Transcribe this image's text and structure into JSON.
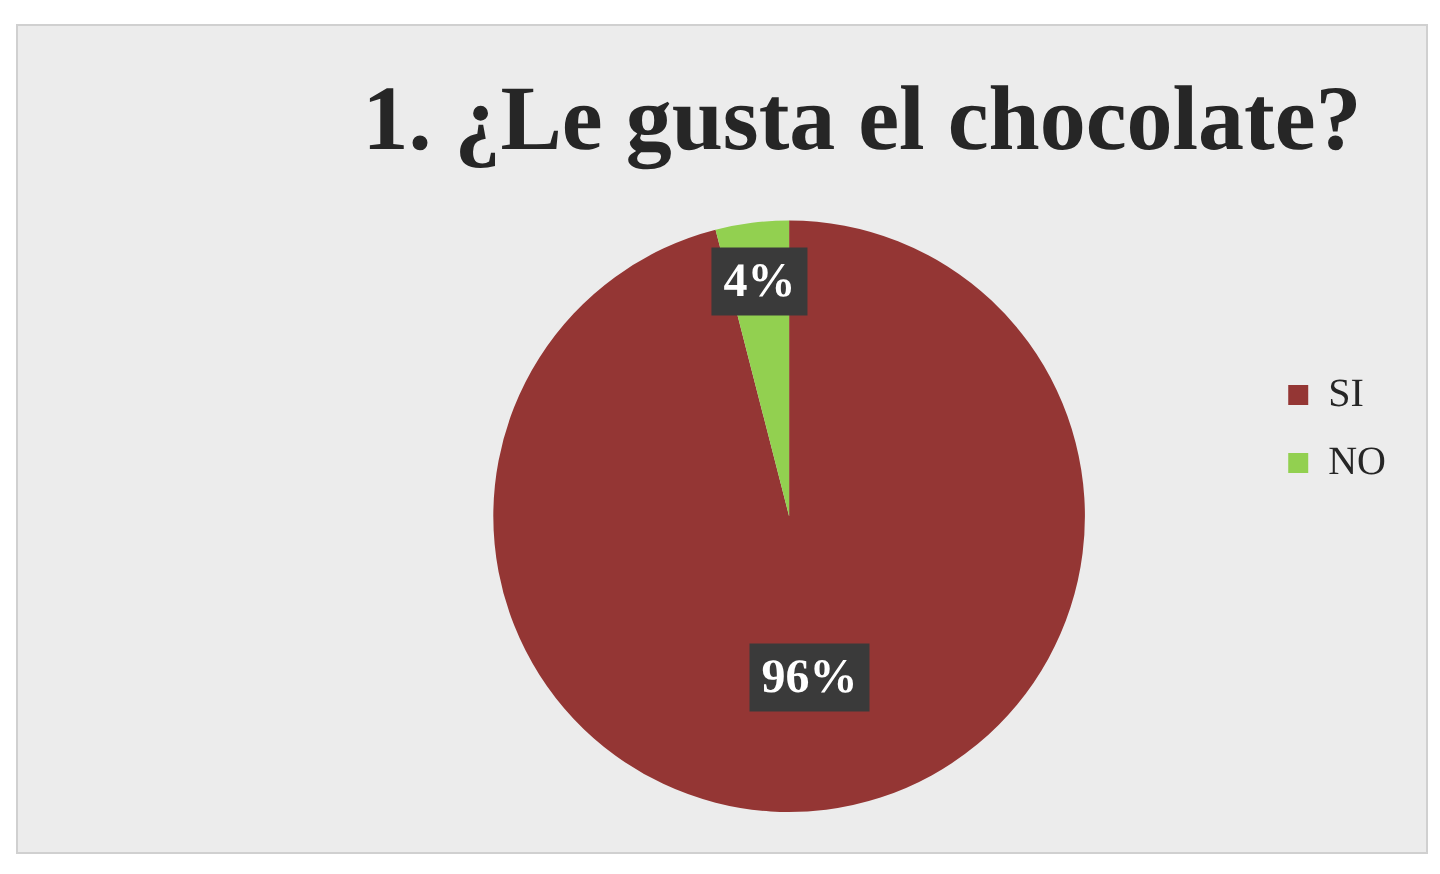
{
  "chart_data": {
    "type": "pie",
    "title": "1. ¿Le gusta el chocolate?",
    "categories": [
      "SI",
      "NO"
    ],
    "values": [
      96,
      4
    ],
    "colors": [
      "#943634",
      "#92d050"
    ],
    "value_labels": [
      "96%",
      "4%"
    ],
    "legend": "right"
  }
}
